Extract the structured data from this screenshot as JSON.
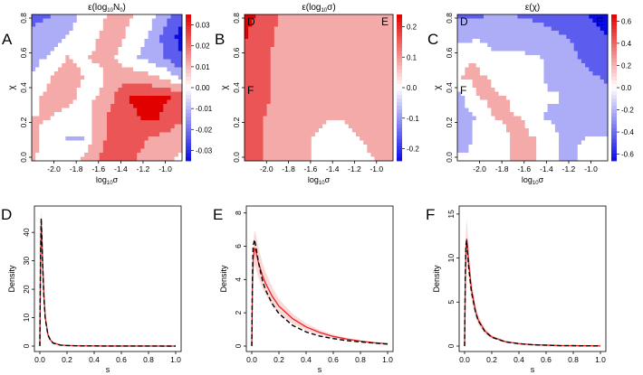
{
  "chart_data": [
    {
      "type": "heatmap",
      "panel_letter": "A",
      "title": "ε(log10N0)",
      "title_main": "ε(log",
      "title_sub": "10",
      "title_after": "N",
      "title_sub2": "0",
      "title_close": ")",
      "xlabel_main": "log",
      "xlabel_sub": "10",
      "xlabel_after": "σ",
      "ylabel": "χ",
      "xlim": [
        -2.2,
        -0.85
      ],
      "ylim": [
        0,
        0.8
      ],
      "x_ticks": [
        "-2.0",
        "-1.8",
        "-1.6",
        "-1.4",
        "-1.2",
        "-1.0"
      ],
      "y_ticks": [
        "0.0",
        "0.2",
        "0.4",
        "0.6",
        "0.8"
      ],
      "colorbar_ticks": [
        "0.03",
        "0.02",
        "0.01",
        "0.00",
        "-0.01",
        "-0.02",
        "-0.03"
      ],
      "colorbar_range": [
        -0.035,
        0.035
      ],
      "annotations": [],
      "field": [
        [
          -0.02,
          -0.018,
          -0.01,
          -0.004,
          0.004,
          0.008,
          0.006,
          0.0,
          -0.012,
          -0.026
        ],
        [
          -0.015,
          -0.012,
          -0.006,
          -0.002,
          0.006,
          0.01,
          0.004,
          -0.006,
          -0.02,
          -0.032
        ],
        [
          -0.01,
          -0.004,
          0.006,
          0.004,
          0.008,
          0.006,
          -0.004,
          -0.01,
          -0.018,
          -0.028
        ],
        [
          -0.004,
          0.006,
          0.01,
          0.006,
          0.002,
          0.012,
          0.014,
          0.01,
          0.004,
          -0.008
        ],
        [
          0.004,
          0.008,
          0.008,
          0.004,
          0.006,
          0.018,
          0.03,
          0.032,
          0.03,
          0.028
        ],
        [
          0.006,
          0.006,
          0.004,
          -0.002,
          0.012,
          0.024,
          0.026,
          0.032,
          0.028,
          0.02
        ],
        [
          0.008,
          0.002,
          -0.006,
          -0.006,
          0.014,
          0.022,
          0.024,
          0.018,
          0.014,
          0.01
        ],
        [
          0.006,
          0.004,
          0.002,
          0.006,
          0.018,
          0.024,
          0.02,
          0.012,
          0.008,
          0.004
        ]
      ]
    },
    {
      "type": "heatmap",
      "panel_letter": "B",
      "title": "ε(log10σ)",
      "title_main": "ε(log",
      "title_sub": "10",
      "title_after": "σ)",
      "title_sub2": "",
      "title_close": "",
      "xlabel_main": "log",
      "xlabel_sub": "10",
      "xlabel_after": "σ",
      "ylabel": "χ",
      "xlim": [
        -2.2,
        -0.85
      ],
      "ylim": [
        0,
        0.8
      ],
      "x_ticks": [
        "-2.0",
        "-1.8",
        "-1.6",
        "-1.4",
        "-1.2",
        "-1.0"
      ],
      "y_ticks": [
        "0.0",
        "0.2",
        "0.4",
        "0.6",
        "0.8"
      ],
      "colorbar_ticks": [
        "0.2",
        "0.1",
        "0.0",
        "-0.1",
        "-0.2"
      ],
      "colorbar_range": [
        -0.24,
        0.24
      ],
      "annotations": [
        "D",
        "E",
        "F"
      ],
      "field": [
        [
          0.22,
          0.18,
          0.12,
          0.1,
          0.1,
          0.1,
          0.1,
          0.1,
          0.1,
          0.1
        ],
        [
          0.2,
          0.16,
          0.1,
          0.08,
          0.1,
          0.1,
          0.1,
          0.1,
          0.1,
          0.1
        ],
        [
          0.18,
          0.14,
          0.1,
          0.06,
          0.06,
          0.06,
          0.08,
          0.08,
          0.1,
          0.1
        ],
        [
          0.18,
          0.14,
          0.1,
          0.06,
          0.06,
          0.06,
          0.06,
          0.06,
          0.08,
          0.06
        ],
        [
          0.16,
          0.14,
          0.1,
          0.1,
          0.08,
          0.06,
          0.06,
          0.06,
          0.08,
          0.1
        ],
        [
          0.16,
          0.12,
          0.1,
          0.1,
          0.08,
          0.04,
          0.04,
          0.06,
          0.08,
          0.1
        ],
        [
          0.16,
          0.12,
          0.1,
          0.08,
          0.04,
          0.02,
          0.02,
          0.04,
          0.06,
          0.08
        ],
        [
          0.14,
          0.12,
          0.1,
          0.08,
          0.04,
          -0.04,
          -0.04,
          0.02,
          0.04,
          0.06
        ]
      ]
    },
    {
      "type": "heatmap",
      "panel_letter": "C",
      "title": "ε(χ)",
      "title_main": "ε(χ)",
      "title_sub": "",
      "title_after": "",
      "title_sub2": "",
      "title_close": "",
      "xlabel_main": "log",
      "xlabel_sub": "10",
      "xlabel_after": "σ",
      "ylabel": "χ",
      "xlim": [
        -2.2,
        -0.85
      ],
      "ylim": [
        0,
        0.8
      ],
      "x_ticks": [
        "-2.0",
        "-1.8",
        "-1.6",
        "-1.4",
        "-1.2",
        "-1.0"
      ],
      "y_ticks": [
        "0.0",
        "0.2",
        "0.4",
        "0.6",
        "0.8"
      ],
      "colorbar_ticks": [
        "0.6",
        "0.4",
        "0.2",
        "0.0",
        "-0.2",
        "-0.4",
        "-0.6"
      ],
      "colorbar_range": [
        -0.66,
        0.66
      ],
      "annotations": [
        "D",
        "E",
        "F"
      ],
      "field": [
        [
          -0.35,
          -0.35,
          -0.3,
          -0.3,
          -0.35,
          -0.4,
          -0.45,
          -0.5,
          -0.55,
          -0.65
        ],
        [
          -0.2,
          -0.15,
          -0.15,
          -0.15,
          -0.15,
          -0.2,
          -0.3,
          -0.35,
          -0.45,
          -0.55
        ],
        [
          0.1,
          0.1,
          -0.1,
          -0.1,
          -0.1,
          -0.1,
          -0.25,
          -0.3,
          -0.4,
          -0.45
        ],
        [
          0.1,
          0.15,
          0.1,
          -0.1,
          -0.1,
          -0.1,
          -0.15,
          -0.2,
          -0.3,
          -0.35
        ],
        [
          -0.2,
          0.1,
          0.15,
          0.1,
          -0.1,
          -0.1,
          -0.1,
          -0.2,
          -0.25,
          -0.3
        ],
        [
          -0.25,
          -0.1,
          0.1,
          0.15,
          0.1,
          -0.1,
          -0.15,
          -0.2,
          -0.2,
          -0.25
        ],
        [
          -0.15,
          -0.1,
          -0.1,
          0.1,
          0.15,
          0.1,
          -0.1,
          -0.15,
          -0.1,
          -0.1
        ],
        [
          -0.1,
          -0.1,
          -0.1,
          0.1,
          0.15,
          0.1,
          -0.1,
          -0.15,
          0.1,
          0.1
        ]
      ]
    },
    {
      "type": "line",
      "panel_letter": "D",
      "xlabel": "s",
      "ylabel": "Density",
      "xlim": [
        0,
        1.0
      ],
      "ylim": [
        0,
        48
      ],
      "x_ticks": [
        "0.0",
        "0.2",
        "0.4",
        "0.6",
        "0.8",
        "1.0"
      ],
      "x_tick_values": [
        0,
        0.2,
        0.4,
        0.6,
        0.8,
        1.0
      ],
      "y_ticks": [
        "0",
        "10",
        "20",
        "30",
        "40"
      ],
      "y_tick_values": [
        0,
        10,
        20,
        30,
        40
      ],
      "series": [
        {
          "style": "solid",
          "color": "#e8231f",
          "x": [
            0.0,
            0.005,
            0.01,
            0.015,
            0.02,
            0.03,
            0.04,
            0.06,
            0.08,
            0.1,
            0.15,
            0.2,
            0.3,
            0.5,
            1.0
          ],
          "y": [
            0,
            30,
            43,
            38,
            30,
            18,
            10,
            4,
            2,
            1.1,
            0.4,
            0.2,
            0.08,
            0.02,
            0
          ]
        },
        {
          "style": "dashed",
          "color": "#000000",
          "x": [
            0.0,
            0.005,
            0.01,
            0.015,
            0.02,
            0.03,
            0.04,
            0.06,
            0.08,
            0.1,
            0.15,
            0.2,
            0.3,
            0.5,
            1.0
          ],
          "y": [
            0,
            32,
            45,
            38,
            29,
            17,
            9.5,
            3.8,
            1.8,
            1.0,
            0.35,
            0.18,
            0.07,
            0.02,
            0
          ]
        }
      ]
    },
    {
      "type": "line",
      "panel_letter": "E",
      "xlabel": "s",
      "ylabel": "Density",
      "xlim": [
        0,
        1.0
      ],
      "ylim": [
        0,
        8.2
      ],
      "x_ticks": [
        "0.0",
        "0.2",
        "0.4",
        "0.6",
        "0.8",
        "1.0"
      ],
      "x_tick_values": [
        0,
        0.2,
        0.4,
        0.6,
        0.8,
        1.0
      ],
      "y_ticks": [
        "0",
        "2",
        "4",
        "6",
        "8"
      ],
      "y_tick_values": [
        0,
        2,
        4,
        6,
        8
      ],
      "series": [
        {
          "style": "solid",
          "color": "#e8231f",
          "x": [
            0.0,
            0.005,
            0.01,
            0.02,
            0.03,
            0.05,
            0.08,
            0.1,
            0.15,
            0.2,
            0.3,
            0.4,
            0.5,
            0.6,
            0.7,
            0.8,
            0.9,
            1.0
          ],
          "y": [
            0,
            3.5,
            5.2,
            5.9,
            5.7,
            5.0,
            4.2,
            3.8,
            3.0,
            2.4,
            1.65,
            1.15,
            0.82,
            0.58,
            0.42,
            0.3,
            0.2,
            0.14
          ]
        },
        {
          "style": "dashed",
          "color": "#000000",
          "x": [
            0.0,
            0.005,
            0.01,
            0.02,
            0.03,
            0.05,
            0.08,
            0.1,
            0.15,
            0.2,
            0.3,
            0.4,
            0.5,
            0.6,
            0.7,
            0.8,
            0.9,
            1.0
          ],
          "y": [
            0,
            4.2,
            6.0,
            6.4,
            6.0,
            5.0,
            3.9,
            3.4,
            2.55,
            1.95,
            1.25,
            0.85,
            0.6,
            0.45,
            0.33,
            0.25,
            0.18,
            0.12
          ]
        }
      ]
    },
    {
      "type": "line",
      "panel_letter": "F",
      "xlabel": "s",
      "ylabel": "Density",
      "xlim": [
        0,
        1.0
      ],
      "ylim": [
        0,
        15.5
      ],
      "x_ticks": [
        "0.0",
        "0.2",
        "0.4",
        "0.6",
        "0.8",
        "1.0"
      ],
      "x_tick_values": [
        0,
        0.2,
        0.4,
        0.6,
        0.8,
        1.0
      ],
      "y_ticks": [
        "0",
        "5",
        "10",
        "15"
      ],
      "y_tick_values": [
        0,
        5,
        10,
        15
      ],
      "series": [
        {
          "style": "solid",
          "color": "#e8231f",
          "x": [
            0.0,
            0.005,
            0.01,
            0.015,
            0.02,
            0.03,
            0.05,
            0.08,
            0.1,
            0.15,
            0.2,
            0.3,
            0.4,
            0.5,
            0.7,
            1.0
          ],
          "y": [
            0,
            7,
            11,
            12.2,
            11.5,
            9.5,
            6.5,
            4.0,
            3.0,
            1.7,
            1.05,
            0.5,
            0.28,
            0.16,
            0.06,
            0.02
          ]
        },
        {
          "style": "dashed",
          "color": "#000000",
          "x": [
            0.0,
            0.005,
            0.01,
            0.015,
            0.02,
            0.03,
            0.05,
            0.08,
            0.1,
            0.15,
            0.2,
            0.3,
            0.4,
            0.5,
            0.7,
            1.0
          ],
          "y": [
            0,
            7.5,
            11.5,
            12.0,
            11.0,
            9.0,
            6.2,
            3.9,
            2.9,
            1.65,
            1.0,
            0.48,
            0.27,
            0.15,
            0.05,
            0.02
          ]
        }
      ]
    }
  ]
}
